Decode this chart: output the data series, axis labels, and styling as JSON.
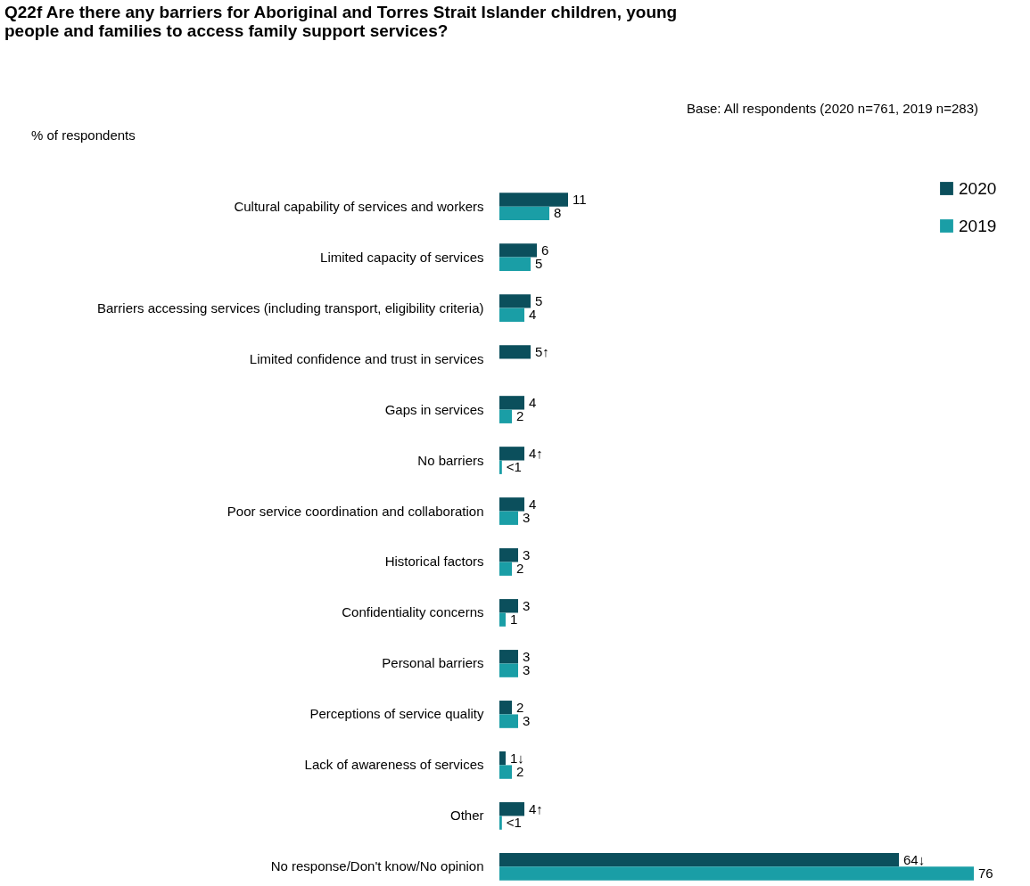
{
  "chart_data": {
    "type": "bar",
    "orientation": "horizontal",
    "title": "Q22f Are there any barriers for Aboriginal and Torres Strait Islander children, young people and families to access family support services?",
    "subtitle": "Base: All respondents (2020 n=761, 2019 n=283)",
    "xlabel": "% of respondents",
    "categories": [
      "Cultural capability of services and workers",
      "Limited capacity of services",
      "Barriers accessing services (including transport, eligibility criteria)",
      "Limited confidence and trust in services",
      "Gaps in services",
      "No barriers",
      "Poor service coordination and collaboration",
      "Historical factors",
      "Confidentiality concerns",
      "Personal barriers",
      "Perceptions of service quality",
      "Lack of awareness of services",
      "Other",
      "No response/Don't know/No opinion"
    ],
    "series": [
      {
        "name": "2020",
        "color": "#0b4f5c",
        "values": [
          11,
          6,
          5,
          5,
          4,
          4,
          4,
          3,
          3,
          3,
          2,
          1,
          4,
          64
        ],
        "value_labels": [
          "11",
          "6",
          "5",
          "5↑",
          "4",
          "4↑",
          "4",
          "3",
          "3",
          "3",
          "2",
          "1↓",
          "4↑",
          "64↓"
        ]
      },
      {
        "name": "2019",
        "color": "#1a9ea6",
        "values": [
          8,
          5,
          4,
          null,
          2,
          0.4,
          3,
          2,
          1,
          3,
          3,
          2,
          0.4,
          76
        ],
        "value_labels": [
          "8",
          "5",
          "4",
          null,
          "2",
          "<1",
          "3",
          "2",
          "1",
          "3",
          "3",
          "2",
          "<1",
          "76"
        ]
      }
    ],
    "legend": "right",
    "grid": false
  }
}
